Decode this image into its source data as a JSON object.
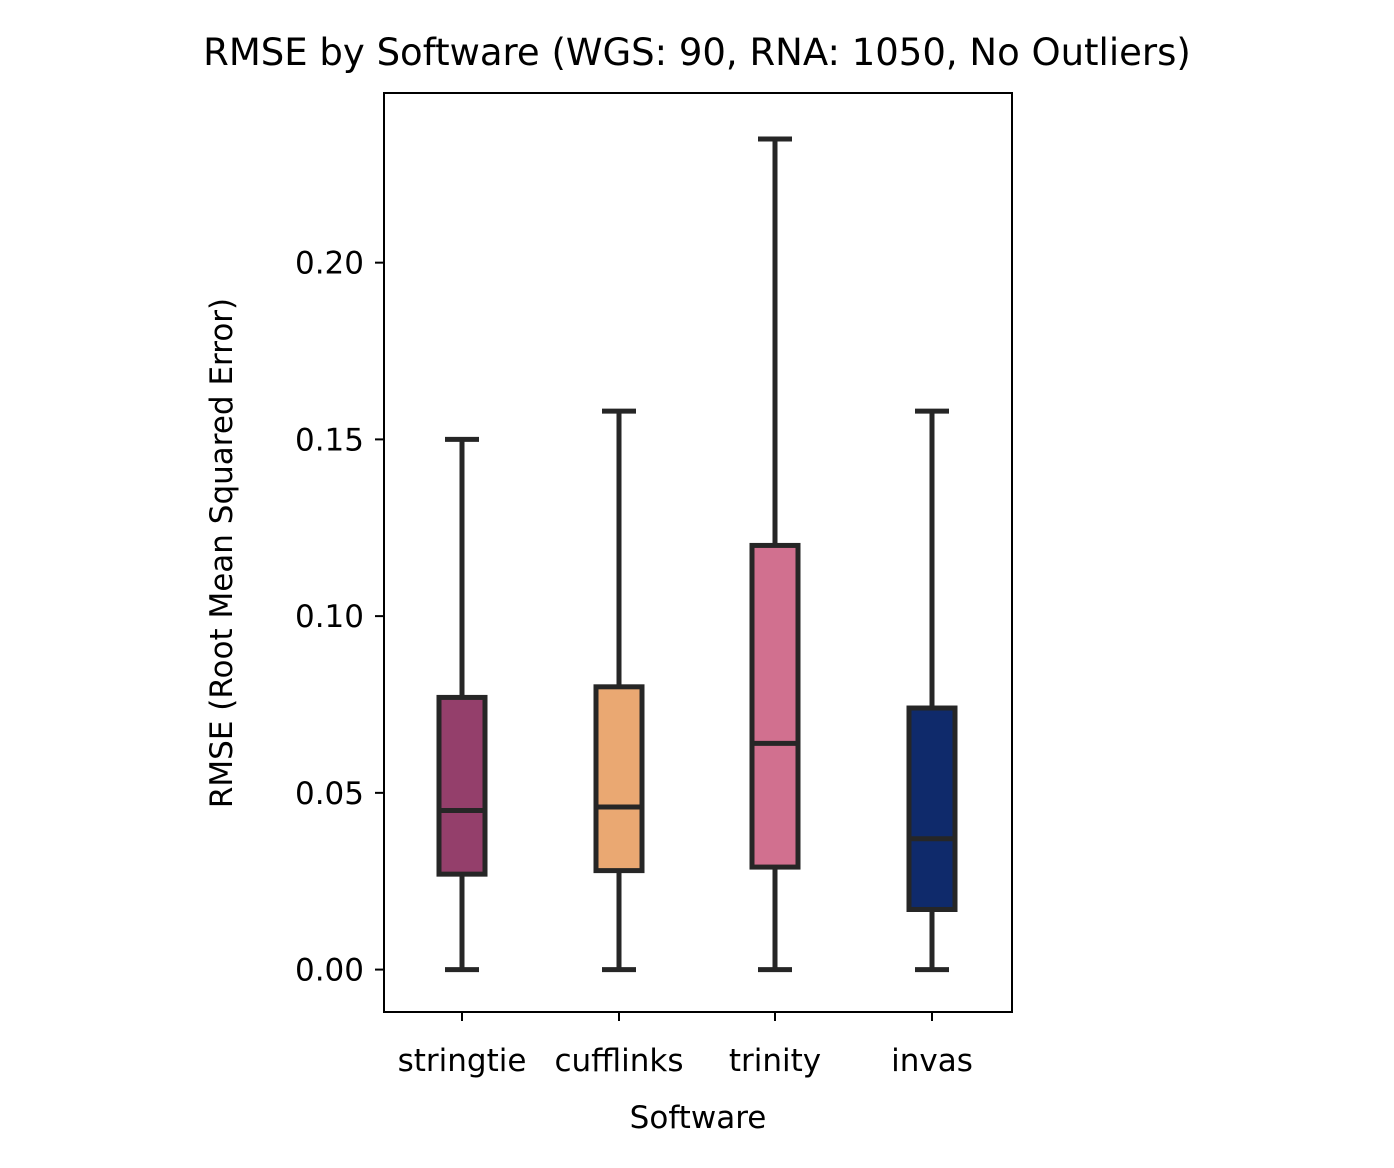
{
  "chart_data": {
    "type": "box",
    "title": "RMSE by Software (WGS: 90, RNA: 1050, No Outliers)",
    "xlabel": "Software",
    "ylabel": "RMSE (Root Mean Squared Error)",
    "ylim": [
      -0.012,
      0.248
    ],
    "yticks": [
      "0.00",
      "0.05",
      "0.10",
      "0.15",
      "0.20"
    ],
    "ytick_values": [
      0.0,
      0.05,
      0.1,
      0.15,
      0.2
    ],
    "grid": false,
    "categories": [
      "stringtie",
      "cufflinks",
      "trinity",
      "invas"
    ],
    "series": [
      {
        "category": "stringtie",
        "whisker_low": 0.0,
        "q1": 0.027,
        "median": 0.045,
        "q3": 0.077,
        "whisker_high": 0.15,
        "color": "#943f6b"
      },
      {
        "category": "cufflinks",
        "whisker_low": 0.0,
        "q1": 0.028,
        "median": 0.046,
        "q3": 0.08,
        "whisker_high": 0.158,
        "color": "#eaa872"
      },
      {
        "category": "trinity",
        "whisker_low": 0.0,
        "q1": 0.029,
        "median": 0.064,
        "q3": 0.12,
        "whisker_high": 0.235,
        "color": "#d1708f"
      },
      {
        "category": "invas",
        "whisker_low": 0.0,
        "q1": 0.017,
        "median": 0.037,
        "q3": 0.074,
        "whisker_high": 0.158,
        "color": "#0f2a6b"
      }
    ]
  }
}
